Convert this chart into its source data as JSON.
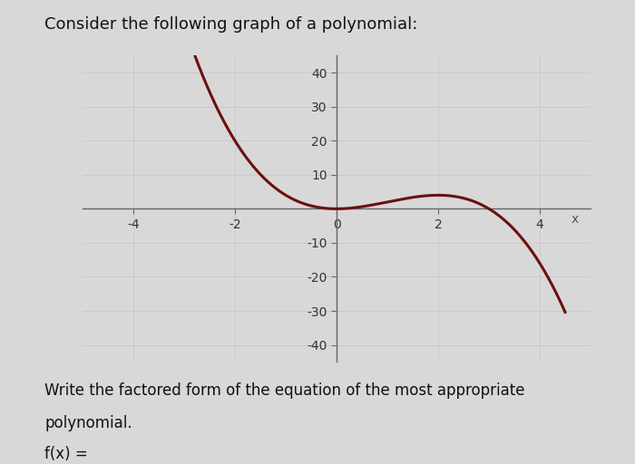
{
  "title": "Consider the following graph of a polynomial:",
  "xlabel": "x",
  "ylabel": "",
  "xlim": [
    -5,
    5
  ],
  "ylim": [
    -45,
    45
  ],
  "xticks": [
    -4,
    -2,
    0,
    2,
    4
  ],
  "yticks": [
    -40,
    -30,
    -20,
    -10,
    10,
    20,
    30,
    40
  ],
  "curve_color": "#6b0f0f",
  "curve_linewidth": 2.2,
  "bg_color": "#d8d8d8",
  "subtitle_line1": "Write the factored form of the equation of the most appropriate",
  "subtitle_line2": "polynomial.",
  "subtitle_line3": "f(x) =",
  "axis_color": "#666666",
  "tick_fontsize": 10,
  "title_fontsize": 13,
  "subtitle_fontsize": 12,
  "x_plot_start": -5.0,
  "x_plot_end": 4.5
}
